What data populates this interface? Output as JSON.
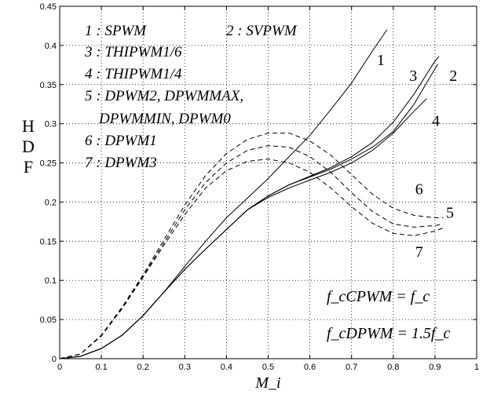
{
  "chart_data": {
    "type": "line",
    "title": "",
    "xlabel": "M_i",
    "ylabel": [
      "H",
      "D",
      "F"
    ],
    "xlim": [
      0,
      1
    ],
    "ylim": [
      0,
      0.45
    ],
    "grid": true,
    "x_ticks": [
      "0",
      "0.1",
      "0.2",
      "0.3",
      "0.4",
      "0.5",
      "0.6",
      "0.7",
      "0.8",
      "0.9",
      "1"
    ],
    "y_ticks": [
      "0",
      "0.05",
      "0.1",
      "0.15",
      "0.2",
      "0.25",
      "0.3",
      "0.35",
      "0.4",
      "0.45"
    ],
    "legend": [
      "1 : SPWM",
      "2 : SVPWM",
      "3 : THIPWM1/6",
      "4 : THIPWM1/4",
      "5 : DPWM2, DPWMMAX,",
      "DPWMMIN, DPWM0",
      "6 : DPWM1",
      "7 : DPWM3"
    ],
    "annotations": [
      "f_cCPWM = f_c",
      "f_cDPWM = 1.5f_c"
    ],
    "series": [
      {
        "name": "1",
        "style": "solid",
        "x": [
          0,
          0.05,
          0.1,
          0.15,
          0.2,
          0.25,
          0.3,
          0.35,
          0.4,
          0.45,
          0.5,
          0.55,
          0.6,
          0.65,
          0.7,
          0.75,
          0.785
        ],
        "y": [
          0,
          0.003,
          0.013,
          0.03,
          0.055,
          0.085,
          0.118,
          0.15,
          0.18,
          0.205,
          0.23,
          0.258,
          0.285,
          0.318,
          0.352,
          0.393,
          0.42
        ]
      },
      {
        "name": "2",
        "style": "solid",
        "x": [
          0,
          0.05,
          0.1,
          0.15,
          0.2,
          0.25,
          0.3,
          0.35,
          0.4,
          0.45,
          0.5,
          0.55,
          0.6,
          0.65,
          0.7,
          0.75,
          0.8,
          0.85,
          0.9,
          0.907
        ],
        "y": [
          0,
          0.003,
          0.013,
          0.03,
          0.055,
          0.085,
          0.114,
          0.14,
          0.165,
          0.19,
          0.208,
          0.222,
          0.232,
          0.242,
          0.255,
          0.27,
          0.29,
          0.325,
          0.37,
          0.376
        ]
      },
      {
        "name": "3",
        "style": "solid",
        "x": [
          0,
          0.05,
          0.1,
          0.15,
          0.2,
          0.25,
          0.3,
          0.35,
          0.4,
          0.45,
          0.5,
          0.55,
          0.6,
          0.65,
          0.7,
          0.75,
          0.8,
          0.85,
          0.9,
          0.91
        ],
        "y": [
          0,
          0.003,
          0.013,
          0.03,
          0.055,
          0.085,
          0.114,
          0.14,
          0.165,
          0.19,
          0.208,
          0.222,
          0.233,
          0.244,
          0.258,
          0.276,
          0.302,
          0.338,
          0.38,
          0.386
        ]
      },
      {
        "name": "4",
        "style": "solid",
        "x": [
          0,
          0.05,
          0.1,
          0.15,
          0.2,
          0.25,
          0.3,
          0.35,
          0.4,
          0.45,
          0.5,
          0.55,
          0.6,
          0.65,
          0.7,
          0.75,
          0.8,
          0.85,
          0.88
        ],
        "y": [
          0,
          0.003,
          0.013,
          0.03,
          0.055,
          0.085,
          0.114,
          0.14,
          0.165,
          0.19,
          0.206,
          0.218,
          0.228,
          0.238,
          0.25,
          0.266,
          0.288,
          0.316,
          0.332
        ]
      },
      {
        "name": "5",
        "style": "dashed",
        "x": [
          0,
          0.05,
          0.1,
          0.15,
          0.2,
          0.25,
          0.3,
          0.35,
          0.4,
          0.45,
          0.5,
          0.55,
          0.6,
          0.65,
          0.7,
          0.75,
          0.8,
          0.85,
          0.9,
          0.92
        ],
        "y": [
          0,
          0.006,
          0.03,
          0.065,
          0.105,
          0.148,
          0.19,
          0.225,
          0.25,
          0.266,
          0.272,
          0.27,
          0.258,
          0.238,
          0.212,
          0.188,
          0.172,
          0.168,
          0.17,
          0.172
        ]
      },
      {
        "name": "6",
        "style": "dashed",
        "x": [
          0,
          0.05,
          0.1,
          0.15,
          0.2,
          0.25,
          0.3,
          0.35,
          0.4,
          0.45,
          0.5,
          0.55,
          0.6,
          0.65,
          0.7,
          0.75,
          0.8,
          0.85,
          0.9,
          0.92
        ],
        "y": [
          0,
          0.006,
          0.03,
          0.066,
          0.107,
          0.152,
          0.196,
          0.234,
          0.262,
          0.28,
          0.288,
          0.288,
          0.278,
          0.26,
          0.235,
          0.21,
          0.192,
          0.183,
          0.18,
          0.18
        ]
      },
      {
        "name": "7",
        "style": "dashed",
        "x": [
          0,
          0.05,
          0.1,
          0.15,
          0.2,
          0.25,
          0.3,
          0.35,
          0.4,
          0.45,
          0.5,
          0.55,
          0.6,
          0.65,
          0.7,
          0.75,
          0.8,
          0.85,
          0.9,
          0.92
        ],
        "y": [
          0,
          0.006,
          0.029,
          0.064,
          0.104,
          0.145,
          0.184,
          0.218,
          0.24,
          0.252,
          0.255,
          0.25,
          0.238,
          0.218,
          0.194,
          0.173,
          0.16,
          0.157,
          0.163,
          0.167
        ]
      }
    ],
    "curve_labels": [
      {
        "text": "1",
        "x": 0.77,
        "y": 0.375
      },
      {
        "text": "3",
        "x": 0.848,
        "y": 0.355
      },
      {
        "text": "2",
        "x": 0.944,
        "y": 0.355
      },
      {
        "text": "4",
        "x": 0.902,
        "y": 0.297
      },
      {
        "text": "6",
        "x": 0.862,
        "y": 0.21
      },
      {
        "text": "5",
        "x": 0.936,
        "y": 0.18
      },
      {
        "text": "7",
        "x": 0.862,
        "y": 0.13
      }
    ]
  }
}
